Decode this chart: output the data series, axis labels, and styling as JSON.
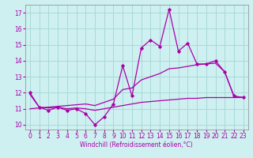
{
  "xlabel": "Windchill (Refroidissement éolien,°C)",
  "x": [
    0,
    1,
    2,
    3,
    4,
    5,
    6,
    7,
    8,
    9,
    10,
    11,
    12,
    13,
    14,
    15,
    16,
    17,
    18,
    19,
    20,
    21,
    22,
    23
  ],
  "y_main": [
    12.0,
    11.1,
    10.9,
    11.1,
    10.9,
    11.0,
    10.7,
    10.0,
    10.5,
    11.3,
    13.7,
    11.8,
    14.8,
    15.3,
    14.9,
    17.2,
    14.6,
    15.1,
    13.8,
    13.8,
    14.0,
    13.3,
    11.8,
    11.7
  ],
  "y_flat": [
    11.9,
    11.1,
    11.05,
    11.1,
    11.0,
    11.05,
    11.0,
    10.9,
    11.0,
    11.1,
    11.2,
    11.3,
    11.4,
    11.45,
    11.5,
    11.55,
    11.6,
    11.65,
    11.65,
    11.7,
    11.7,
    11.7,
    11.7,
    11.7
  ],
  "y_diag": [
    11.0,
    11.05,
    11.1,
    11.15,
    11.2,
    11.25,
    11.3,
    11.2,
    11.4,
    11.6,
    12.2,
    12.3,
    12.8,
    13.0,
    13.2,
    13.5,
    13.55,
    13.65,
    13.75,
    13.8,
    13.85,
    13.3,
    11.75,
    11.7
  ],
  "bg_color": "#cef0f0",
  "grid_color": "#aad8d8",
  "line_color": "#aa00aa",
  "ylim": [
    9.7,
    17.5
  ],
  "yticks": [
    10,
    11,
    12,
    13,
    14,
    15,
    16,
    17
  ],
  "xticks": [
    0,
    1,
    2,
    3,
    4,
    5,
    6,
    7,
    8,
    9,
    10,
    11,
    12,
    13,
    14,
    15,
    16,
    17,
    18,
    19,
    20,
    21,
    22,
    23
  ],
  "xlim": [
    -0.5,
    23.5
  ]
}
